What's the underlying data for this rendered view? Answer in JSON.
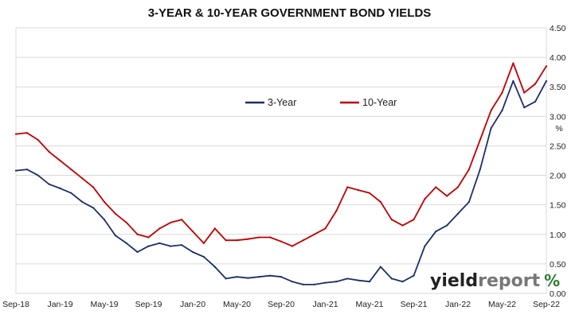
{
  "chart_data": {
    "type": "line",
    "title": "3-YEAR & 10-YEAR GOVERNMENT BOND YIELDS",
    "xlabel": "",
    "ylabel": "%",
    "ylim": [
      0,
      4.5
    ],
    "yticks": [
      "0.00",
      "0.50",
      "1.00",
      "1.50",
      "2.00",
      "2.50",
      "3.00",
      "3.50",
      "4.00",
      "4.50"
    ],
    "xticks": [
      "Sep-18",
      "Jan-19",
      "May-19",
      "Sep-19",
      "Jan-20",
      "May-20",
      "Sep-20",
      "Jan-21",
      "May-21",
      "Sep-21",
      "Jan-22",
      "May-22",
      "Sep-22"
    ],
    "grid": "horizontal",
    "legend_position": "top-center",
    "series": [
      {
        "name": "3-Year",
        "color": "#1b2f6b",
        "x": [
          "Sep-18",
          "Oct-18",
          "Nov-18",
          "Dec-18",
          "Jan-19",
          "Feb-19",
          "Mar-19",
          "Apr-19",
          "May-19",
          "Jun-19",
          "Jul-19",
          "Aug-19",
          "Sep-19",
          "Oct-19",
          "Nov-19",
          "Dec-19",
          "Jan-20",
          "Feb-20",
          "Mar-20",
          "Apr-20",
          "May-20",
          "Jun-20",
          "Jul-20",
          "Aug-20",
          "Sep-20",
          "Oct-20",
          "Nov-20",
          "Dec-20",
          "Jan-21",
          "Feb-21",
          "Mar-21",
          "Apr-21",
          "May-21",
          "Jun-21",
          "Jul-21",
          "Aug-21",
          "Sep-21",
          "Oct-21",
          "Nov-21",
          "Dec-21",
          "Jan-22",
          "Feb-22",
          "Mar-22",
          "Apr-22",
          "May-22",
          "Jun-22",
          "Jul-22",
          "Aug-22",
          "Sep-22"
        ],
        "values": [
          2.08,
          2.1,
          2.0,
          1.85,
          1.78,
          1.7,
          1.55,
          1.45,
          1.25,
          0.98,
          0.85,
          0.7,
          0.8,
          0.85,
          0.8,
          0.82,
          0.7,
          0.62,
          0.45,
          0.25,
          0.28,
          0.26,
          0.28,
          0.3,
          0.28,
          0.2,
          0.15,
          0.15,
          0.18,
          0.2,
          0.25,
          0.22,
          0.2,
          0.45,
          0.25,
          0.2,
          0.3,
          0.8,
          1.05,
          1.15,
          1.35,
          1.55,
          2.1,
          2.8,
          3.1,
          3.6,
          3.15,
          3.25,
          3.6
        ]
      },
      {
        "name": "10-Year",
        "color": "#c00000",
        "x": [
          "Sep-18",
          "Oct-18",
          "Nov-18",
          "Dec-18",
          "Jan-19",
          "Feb-19",
          "Mar-19",
          "Apr-19",
          "May-19",
          "Jun-19",
          "Jul-19",
          "Aug-19",
          "Sep-19",
          "Oct-19",
          "Nov-19",
          "Dec-19",
          "Jan-20",
          "Feb-20",
          "Mar-20",
          "Apr-20",
          "May-20",
          "Jun-20",
          "Jul-20",
          "Aug-20",
          "Sep-20",
          "Oct-20",
          "Nov-20",
          "Dec-20",
          "Jan-21",
          "Feb-21",
          "Mar-21",
          "Apr-21",
          "May-21",
          "Jun-21",
          "Jul-21",
          "Aug-21",
          "Sep-21",
          "Oct-21",
          "Nov-21",
          "Dec-21",
          "Jan-22",
          "Feb-22",
          "Mar-22",
          "Apr-22",
          "May-22",
          "Jun-22",
          "Jul-22",
          "Aug-22",
          "Sep-22"
        ],
        "values": [
          2.7,
          2.72,
          2.6,
          2.4,
          2.25,
          2.1,
          1.95,
          1.8,
          1.55,
          1.35,
          1.2,
          1.0,
          0.95,
          1.1,
          1.2,
          1.25,
          1.05,
          0.85,
          1.1,
          0.9,
          0.9,
          0.92,
          0.95,
          0.95,
          0.88,
          0.8,
          0.9,
          1.0,
          1.1,
          1.4,
          1.8,
          1.75,
          1.7,
          1.55,
          1.25,
          1.15,
          1.25,
          1.6,
          1.8,
          1.65,
          1.8,
          2.1,
          2.6,
          3.1,
          3.4,
          3.9,
          3.4,
          3.55,
          3.85
        ]
      }
    ]
  }
}
